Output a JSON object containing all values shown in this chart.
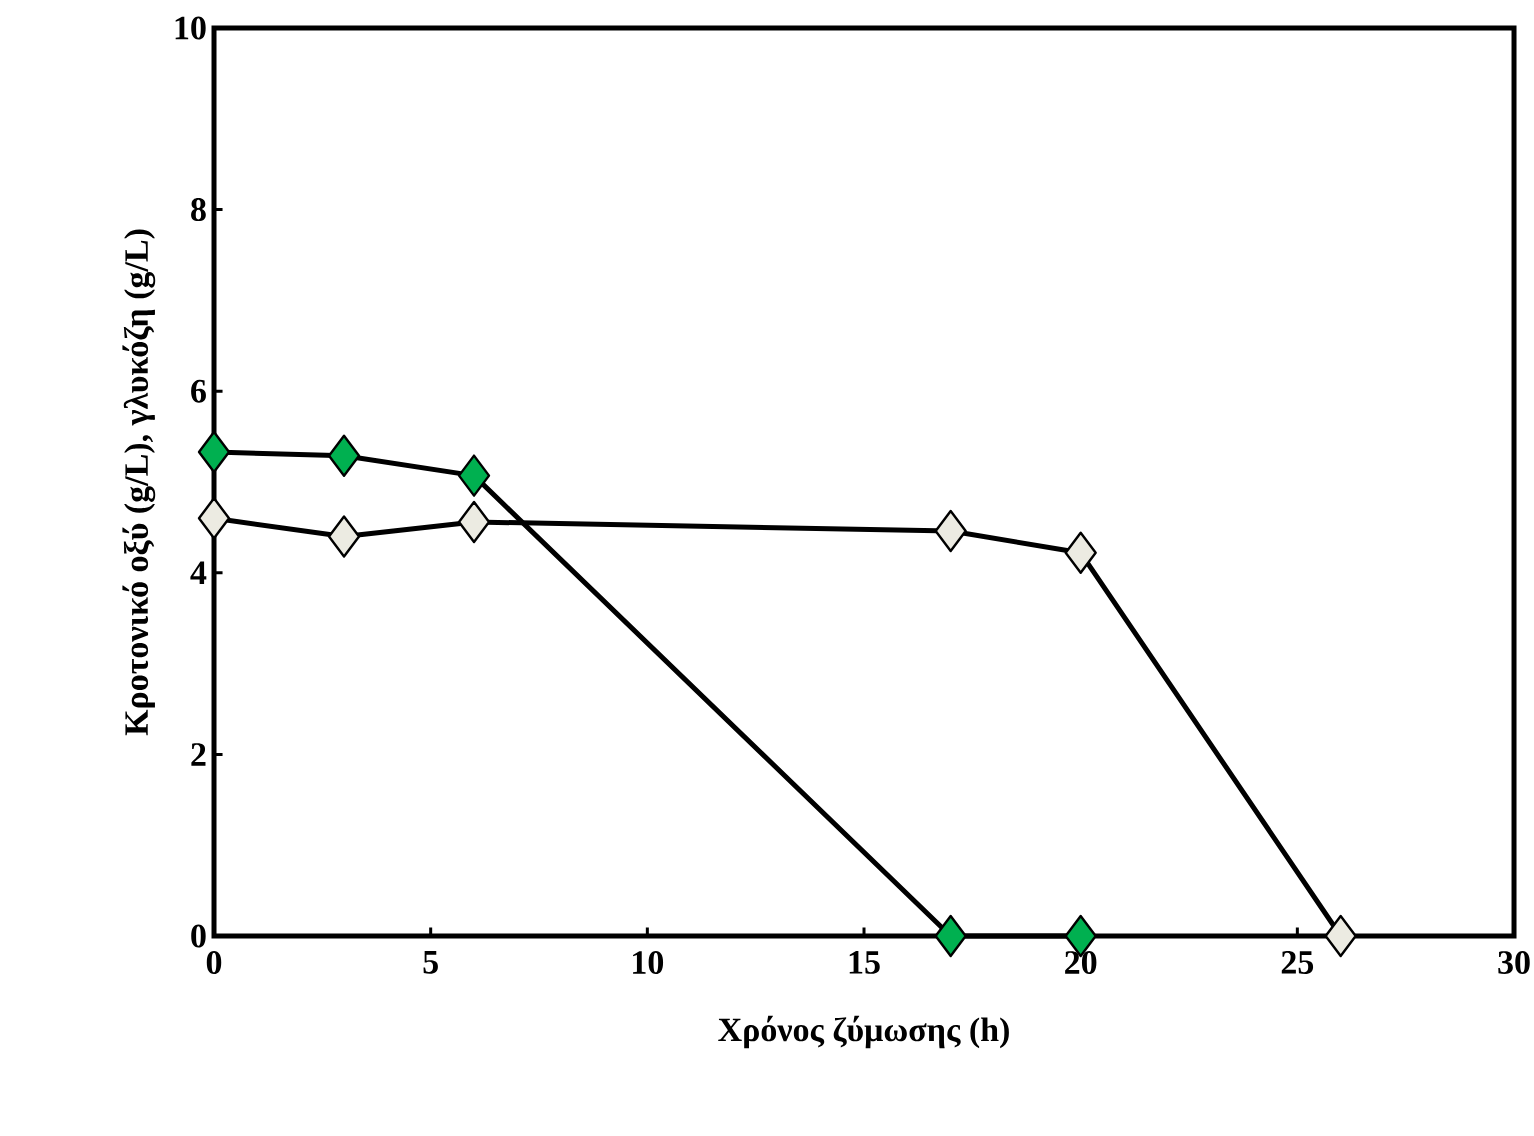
{
  "chart_data": {
    "type": "line",
    "xlabel": "Χρόνος ζύμωσης (h)",
    "ylabel": "Κροτονικό οξύ (g/L), γλυκόζη  (g/L)",
    "marker": "diamond",
    "line_style": "solid",
    "grid": false,
    "xlim": [
      0,
      30
    ],
    "xticks": [
      0,
      5,
      10,
      15,
      20,
      25,
      30
    ],
    "ylim": [
      0,
      10
    ],
    "yticks": [
      0,
      2,
      4,
      6,
      8,
      10
    ],
    "series": [
      {
        "color": "#ecebe2",
        "x": [
          0,
          3,
          6,
          17,
          20,
          26
        ],
        "values": [
          4.6,
          4.4,
          4.56,
          4.46,
          4.22,
          0
        ]
      },
      {
        "color": "#00b050",
        "x": [
          0,
          3,
          6,
          17,
          20
        ],
        "values": [
          5.33,
          5.29,
          5.07,
          0,
          0
        ]
      }
    ]
  }
}
